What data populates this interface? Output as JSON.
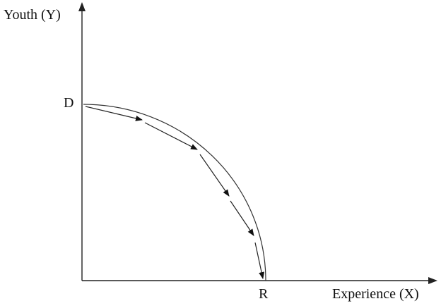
{
  "axes": {
    "y_label": "Youth (Y)",
    "x_label": "Experience (X)"
  },
  "points": {
    "start": "D",
    "end": "R"
  }
}
